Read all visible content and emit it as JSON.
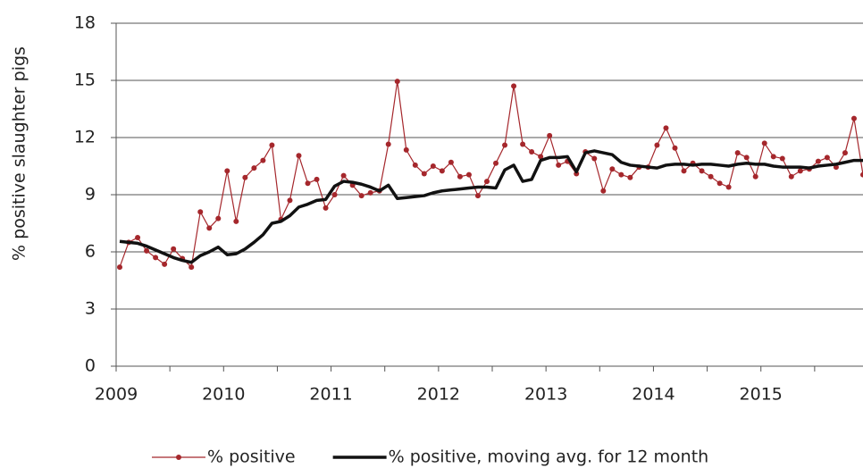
{
  "chart_data": {
    "type": "line",
    "y_label": "% positive slaughter pigs",
    "categories": [
      "2009",
      null,
      null,
      null,
      null,
      null,
      null,
      null,
      null,
      null,
      null,
      null,
      "2010",
      null,
      null,
      null,
      null,
      null,
      null,
      null,
      null,
      null,
      null,
      null,
      "2011",
      null,
      null,
      null,
      null,
      null,
      null,
      null,
      null,
      null,
      null,
      null,
      "2012",
      null,
      null,
      null,
      null,
      null,
      null,
      null,
      null,
      null,
      null,
      null,
      "2013",
      null,
      null,
      null,
      null,
      null,
      null,
      null,
      null,
      null,
      null,
      null,
      "2014",
      null,
      null,
      null,
      null,
      null,
      null,
      null,
      null,
      null,
      null,
      null,
      "2015",
      null,
      null,
      null,
      null,
      null,
      null,
      null,
      null,
      null,
      null,
      null
    ],
    "series": [
      {
        "name": "% positive",
        "color": "#a5272c",
        "marker": true,
        "values": [
          5.2,
          6.5,
          6.75,
          6.05,
          5.7,
          5.35,
          6.15,
          5.65,
          5.2,
          8.1,
          7.25,
          7.75,
          10.25,
          7.6,
          9.9,
          10.4,
          10.8,
          11.6,
          7.7,
          8.7,
          11.05,
          9.6,
          9.8,
          8.3,
          9.0,
          10.0,
          9.5,
          8.95,
          9.1,
          9.2,
          11.65,
          14.95,
          11.35,
          10.55,
          10.1,
          10.5,
          10.25,
          10.7,
          9.95,
          10.05,
          8.95,
          9.7,
          10.65,
          11.6,
          14.7,
          11.65,
          11.25,
          11.0,
          12.1,
          10.55,
          10.75,
          10.1,
          11.25,
          10.9,
          9.2,
          10.35,
          10.05,
          9.9,
          10.45,
          10.45,
          11.6,
          12.5,
          11.45,
          10.25,
          10.65,
          10.25,
          9.95,
          9.6,
          9.4,
          11.2,
          10.95,
          9.95,
          11.7,
          11.0,
          10.9,
          9.95,
          10.25,
          10.35,
          10.75,
          10.95,
          10.45,
          11.2,
          13.0,
          10.05
        ]
      },
      {
        "name": "% positive, moving avg. for 12 month",
        "color": "#111111",
        "marker": false,
        "values": [
          6.55,
          6.5,
          6.45,
          6.3,
          6.1,
          5.9,
          5.7,
          5.55,
          5.45,
          5.8,
          6.0,
          6.25,
          5.85,
          5.9,
          6.15,
          6.5,
          6.9,
          7.5,
          7.6,
          7.9,
          8.35,
          8.5,
          8.7,
          8.75,
          9.45,
          9.7,
          9.65,
          9.55,
          9.4,
          9.2,
          9.5,
          8.8,
          8.85,
          8.9,
          8.95,
          9.1,
          9.2,
          9.25,
          9.3,
          9.35,
          9.4,
          9.4,
          9.35,
          10.3,
          10.55,
          9.7,
          9.8,
          10.8,
          10.95,
          10.95,
          11.0,
          10.2,
          11.2,
          11.3,
          11.2,
          11.1,
          10.7,
          10.55,
          10.5,
          10.45,
          10.4,
          10.55,
          10.6,
          10.6,
          10.55,
          10.6,
          10.6,
          10.55,
          10.5,
          10.6,
          10.65,
          10.6,
          10.6,
          10.5,
          10.45,
          10.45,
          10.45,
          10.4,
          10.5,
          10.55,
          10.6,
          10.7,
          10.8,
          10.8
        ]
      }
    ],
    "ylim": [
      0,
      18
    ],
    "yticks": [
      0,
      3,
      6,
      9,
      12,
      15,
      18
    ],
    "grid": true,
    "legend": "bottom"
  }
}
